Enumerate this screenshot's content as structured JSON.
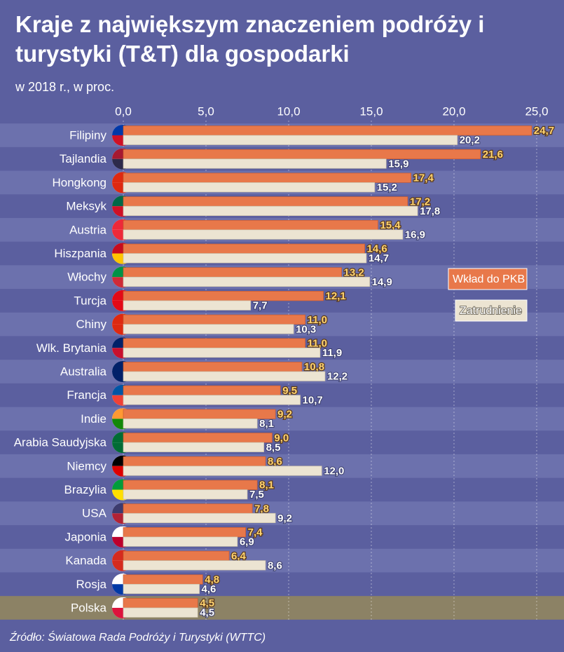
{
  "chart_data": {
    "type": "bar",
    "orientation": "horizontal",
    "title": "Kraje z największym znaczeniem podróży i turystyki (T&T) dla gospodarki",
    "subtitle": "w 2018 r., w proc.",
    "source": "Źródło: Światowa Rada Podróży i Turystyki (WTTC)",
    "categories": [
      "Filipiny",
      "Tajlandia",
      "Hongkong",
      "Meksyk",
      "Austria",
      "Hiszpania",
      "Włochy",
      "Turcja",
      "Chiny",
      "Wlk. Brytania",
      "Australia",
      "Francja",
      "Indie",
      "Arabia Saudyjska",
      "Niemcy",
      "Brazylia",
      "USA",
      "Japonia",
      "Kanada",
      "Rosja",
      "Polska"
    ],
    "highlight_category": "Polska",
    "series": [
      {
        "name": "Wkład do PKB",
        "color": "#e8784a",
        "values": [
          24.7,
          21.6,
          17.4,
          17.2,
          15.4,
          14.6,
          13.2,
          12.1,
          11.0,
          11.0,
          10.8,
          9.5,
          9.2,
          9.0,
          8.6,
          8.1,
          7.8,
          7.4,
          6.4,
          4.8,
          4.5
        ],
        "value_labels": [
          "24,7",
          "21,6",
          "17,4",
          "17,2",
          "15,4",
          "14,6",
          "13,2",
          "12,1",
          "11,0",
          "11,0",
          "10,8",
          "9,5",
          "9,2",
          "9,0",
          "8,6",
          "8,1",
          "7,8",
          "7,4",
          "6,4",
          "4,8",
          "4,5"
        ]
      },
      {
        "name": "Zatrudnienie",
        "color": "#ece4d2",
        "values": [
          20.2,
          15.9,
          15.2,
          17.8,
          16.9,
          14.7,
          14.9,
          7.7,
          10.3,
          11.9,
          12.2,
          10.7,
          8.1,
          8.5,
          12.0,
          7.5,
          9.2,
          6.9,
          8.6,
          4.6,
          4.5
        ],
        "value_labels": [
          "20,2",
          "15,9",
          "15,2",
          "17,8",
          "16,9",
          "14,7",
          "14,9",
          "7,7",
          "10,3",
          "11,9",
          "12,2",
          "10,7",
          "8,1",
          "8,5",
          "12,0",
          "7,5",
          "9,2",
          "6,9",
          "8,6",
          "4,6",
          "4,5"
        ]
      }
    ],
    "xlim": [
      0,
      25
    ],
    "xticks": [
      {
        "value": 0,
        "label": "0,0"
      },
      {
        "value": 5,
        "label": "5,0"
      },
      {
        "value": 10,
        "label": "10,0"
      },
      {
        "value": 15,
        "label": "15,0"
      },
      {
        "value": 20,
        "label": "20,0"
      },
      {
        "value": 25,
        "label": "25,0"
      }
    ],
    "grid": true,
    "legend": "right"
  }
}
